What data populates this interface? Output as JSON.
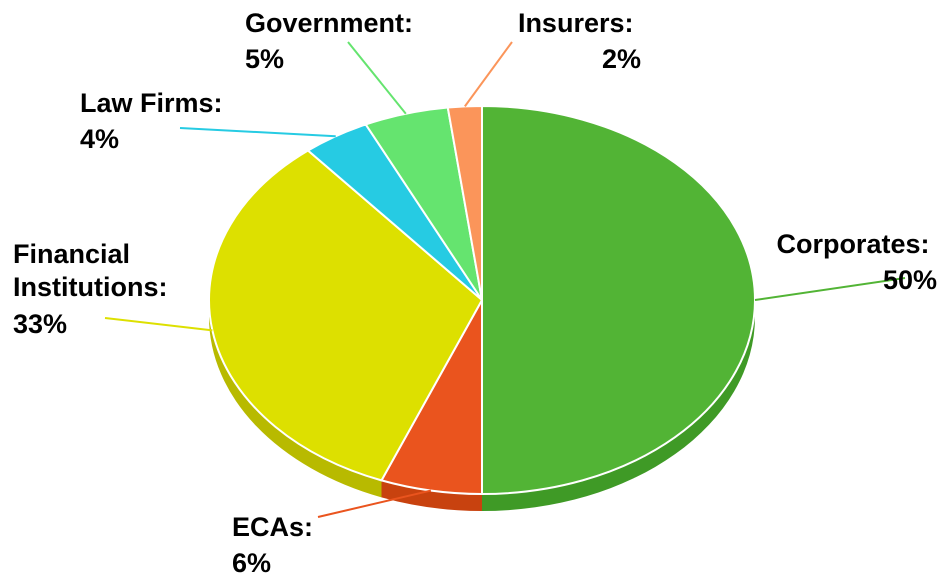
{
  "chart_data": {
    "type": "pie",
    "title": "",
    "style": "3d",
    "slices": [
      {
        "label": "Corporates:",
        "value": 50,
        "value_label": "50%",
        "color": "#52b435",
        "side_color": "#3f9a26"
      },
      {
        "label": "ECAs:",
        "value": 6,
        "value_label": "6%",
        "color": "#ea541e",
        "side_color": "#c8420f"
      },
      {
        "label": "Financial Institutions:",
        "value": 33,
        "value_label": "33%",
        "color": "#dde000",
        "side_color": "#b8ba00"
      },
      {
        "label": "Law Firms:",
        "value": 4,
        "value_label": "4%",
        "color": "#26cbe3",
        "side_color": "#14a7bd"
      },
      {
        "label": "Government:",
        "value": 5,
        "value_label": "5%",
        "color": "#65e46f",
        "side_color": "#46c150"
      },
      {
        "label": "Insurers:",
        "value": 2,
        "value_label": "2%",
        "color": "#fb955a",
        "side_color": "#d77638"
      }
    ]
  }
}
